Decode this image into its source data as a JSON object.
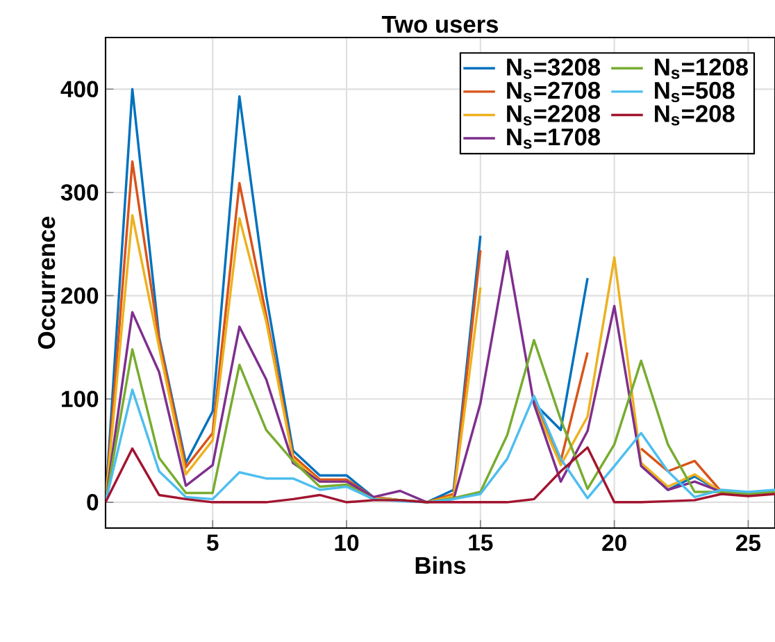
{
  "chart_data": {
    "type": "line",
    "title": "Two users",
    "xlabel": "Bins",
    "ylabel": "Occurrence",
    "x": [
      1,
      2,
      3,
      4,
      5,
      6,
      7,
      8,
      9,
      10,
      11,
      12,
      13,
      14,
      15,
      16,
      17,
      18,
      19,
      20,
      21,
      22,
      23,
      24,
      25,
      26
    ],
    "series": [
      {
        "name": "N$_{s}$=3208",
        "color": "#0072bd",
        "values": [
          0,
          400,
          160,
          38,
          88,
          393,
          200,
          50,
          26,
          26,
          5,
          2,
          0,
          12,
          258,
          null,
          96,
          70,
          217,
          null,
          38,
          12,
          25,
          10,
          8,
          10
        ]
      },
      {
        "name": "N$_{s}$=2708",
        "color": "#d95319",
        "values": [
          0,
          330,
          157,
          34,
          67,
          309,
          181,
          45,
          22,
          22,
          5,
          2,
          0,
          8,
          244,
          null,
          98,
          40,
          145,
          null,
          52,
          30,
          40,
          10,
          8,
          10
        ]
      },
      {
        "name": "N$_{s}$=2208",
        "color": "#edb120",
        "values": [
          0,
          278,
          150,
          27,
          60,
          275,
          175,
          42,
          20,
          20,
          4,
          2,
          0,
          6,
          208,
          null,
          95,
          36,
          83,
          237,
          38,
          15,
          27,
          10,
          8,
          10
        ]
      },
      {
        "name": "N$_{s}$=1708",
        "color": "#7e2f8e",
        "values": [
          0,
          184,
          126,
          16,
          36,
          170,
          119,
          38,
          20,
          20,
          5,
          11,
          0,
          3,
          96,
          243,
          95,
          20,
          69,
          190,
          35,
          12,
          20,
          10,
          8,
          10
        ]
      },
      {
        "name": "N$_{s}$=1208",
        "color": "#77ac30",
        "values": [
          0,
          148,
          43,
          9,
          9,
          133,
          70,
          40,
          15,
          17,
          3,
          2,
          0,
          4,
          10,
          65,
          157,
          80,
          13,
          56,
          137,
          56,
          10,
          10,
          8,
          10
        ]
      },
      {
        "name": "N$_{s}$=508",
        "color": "#4dbeee",
        "values": [
          0,
          109,
          30,
          5,
          3,
          29,
          23,
          23,
          12,
          15,
          3,
          1,
          0,
          3,
          8,
          42,
          103,
          42,
          4,
          35,
          67,
          30,
          5,
          12,
          10,
          12
        ]
      },
      {
        "name": "N$_{s}$=208",
        "color": "#a2142f",
        "values": [
          0,
          52,
          7,
          3,
          0,
          0,
          0,
          3,
          7,
          0,
          2,
          2,
          0,
          0,
          0,
          0,
          3,
          30,
          53,
          0,
          0,
          1,
          2,
          8,
          6,
          8
        ]
      }
    ],
    "xlim": [
      1,
      26
    ],
    "ylim": [
      -25,
      450
    ],
    "xticks": [
      5,
      10,
      15,
      20,
      25
    ],
    "yticks": [
      0,
      100,
      200,
      300,
      400
    ],
    "grid": true,
    "legend": "top right",
    "marker": "none",
    "line_style": "solid"
  }
}
